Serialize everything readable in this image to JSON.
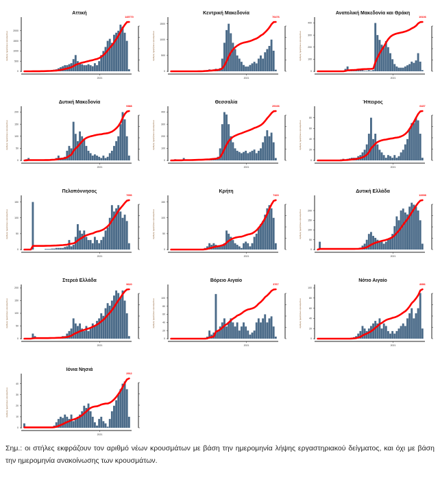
{
  "colors": {
    "bar": "#4a6a88",
    "line": "#ff0000",
    "axis": "#222222",
    "label": "#8a5a2a"
  },
  "axis_common": {
    "ylabel": "Αριθμός ημερήσιων κρουσμάτων",
    "xtick": "2021"
  },
  "note": "Σημ.: οι στήλες εκφράζουν τον αριθμό νέων κρουσμάτων με βάση την ημερομηνία λήψης εργαστηριακού δείγματος, και όχι με βάση την ημερομηνία ανακοίνωσης των κρουσμάτων.",
  "chart_data": [
    {
      "type": "bar+line",
      "title": "Αττική",
      "ylim": [
        0,
        2500
      ],
      "yticks": [
        0,
        500,
        1000,
        1500,
        2000
      ],
      "cumulative_end": "145770",
      "values": [
        5,
        5,
        5,
        5,
        5,
        10,
        10,
        15,
        20,
        20,
        30,
        40,
        50,
        60,
        80,
        100,
        150,
        200,
        250,
        300,
        300,
        350,
        400,
        600,
        800,
        500,
        400,
        350,
        300,
        300,
        350,
        300,
        250,
        400,
        300,
        500,
        800,
        1000,
        1200,
        1500,
        1600,
        1400,
        1800,
        1900,
        2000,
        2300,
        2200,
        1900,
        1500,
        100
      ]
    },
    {
      "type": "bar+line",
      "title": "Κεντρική Μακεδονία",
      "ylim": [
        0,
        1600
      ],
      "yticks": [
        0,
        500,
        1000,
        1500
      ],
      "cumulative_end": "76476",
      "values": [
        0,
        0,
        0,
        0,
        0,
        0,
        0,
        0,
        0,
        0,
        0,
        5,
        5,
        10,
        10,
        20,
        30,
        40,
        60,
        50,
        60,
        80,
        70,
        100,
        400,
        900,
        1300,
        1500,
        1200,
        900,
        700,
        500,
        400,
        300,
        200,
        150,
        150,
        200,
        250,
        300,
        250,
        400,
        500,
        400,
        600,
        700,
        800,
        1000,
        650,
        50
      ]
    },
    {
      "type": "bar+line",
      "title": "Ανατολική Μακεδονία και Θράκη",
      "ylim": [
        0,
        420
      ],
      "yticks": [
        0,
        100,
        200,
        300,
        400
      ],
      "cumulative_end": "19106",
      "values": [
        0,
        0,
        0,
        0,
        0,
        0,
        0,
        0,
        0,
        0,
        0,
        0,
        0,
        20,
        40,
        10,
        5,
        5,
        10,
        20,
        10,
        10,
        5,
        5,
        10,
        5,
        10,
        400,
        300,
        260,
        220,
        200,
        250,
        200,
        150,
        100,
        60,
        40,
        30,
        30,
        30,
        40,
        50,
        60,
        80,
        70,
        90,
        150,
        80,
        10
      ]
    },
    {
      "type": "bar+line",
      "title": "Δυτική Μακεδονία",
      "ylim": [
        0,
        210
      ],
      "yticks": [
        0,
        50,
        100,
        150,
        200
      ],
      "cumulative_end": "9388",
      "values": [
        0,
        5,
        10,
        0,
        0,
        0,
        0,
        0,
        0,
        0,
        2,
        2,
        3,
        5,
        5,
        10,
        20,
        10,
        10,
        15,
        40,
        60,
        50,
        160,
        110,
        80,
        120,
        100,
        90,
        60,
        40,
        30,
        20,
        25,
        20,
        15,
        10,
        20,
        10,
        15,
        30,
        40,
        60,
        80,
        100,
        150,
        200,
        170,
        100,
        20
      ]
    },
    {
      "type": "bar+line",
      "title": "Θεσσαλία",
      "ylim": [
        0,
        420
      ],
      "yticks": [
        0,
        100,
        200,
        300,
        400
      ],
      "cumulative_end": "29166",
      "values": [
        0,
        0,
        10,
        0,
        0,
        0,
        20,
        0,
        0,
        0,
        5,
        5,
        5,
        5,
        5,
        10,
        10,
        10,
        10,
        15,
        20,
        20,
        30,
        100,
        300,
        400,
        380,
        300,
        200,
        150,
        100,
        80,
        70,
        60,
        70,
        80,
        60,
        70,
        80,
        90,
        60,
        80,
        100,
        150,
        200,
        250,
        200,
        230,
        150,
        20
      ]
    },
    {
      "type": "bar+line",
      "title": "Ήπειρος",
      "ylim": [
        0,
        95
      ],
      "yticks": [
        0,
        20,
        40,
        60,
        80
      ],
      "cumulative_end": "6437",
      "values": [
        0,
        0,
        0,
        0,
        0,
        0,
        0,
        0,
        0,
        0,
        0,
        2,
        3,
        2,
        3,
        4,
        5,
        5,
        5,
        8,
        10,
        15,
        20,
        30,
        50,
        80,
        40,
        50,
        30,
        20,
        15,
        10,
        5,
        10,
        8,
        5,
        10,
        5,
        8,
        15,
        20,
        30,
        40,
        60,
        70,
        70,
        80,
        75,
        50,
        5
      ]
    },
    {
      "type": "bar+line",
      "title": "Πελοπόννησος",
      "ylim": [
        0,
        160
      ],
      "yticks": [
        0,
        50,
        100,
        150
      ],
      "cumulative_end": "7656",
      "values": [
        0,
        0,
        0,
        0,
        150,
        0,
        0,
        0,
        0,
        0,
        2,
        2,
        2,
        3,
        3,
        5,
        5,
        5,
        5,
        8,
        10,
        30,
        10,
        15,
        40,
        80,
        60,
        50,
        60,
        40,
        30,
        30,
        20,
        40,
        30,
        20,
        30,
        40,
        60,
        70,
        100,
        140,
        120,
        130,
        140,
        120,
        100,
        110,
        90,
        20
      ]
    },
    {
      "type": "bar+line",
      "title": "Κρήτη",
      "ylim": [
        0,
        160
      ],
      "yticks": [
        0,
        50,
        100,
        150
      ],
      "cumulative_end": "7423",
      "values": [
        0,
        0,
        0,
        0,
        0,
        0,
        0,
        0,
        0,
        0,
        0,
        0,
        0,
        0,
        0,
        2,
        5,
        10,
        20,
        15,
        20,
        15,
        10,
        10,
        15,
        20,
        60,
        50,
        40,
        30,
        20,
        15,
        10,
        5,
        20,
        25,
        20,
        10,
        20,
        40,
        50,
        70,
        80,
        90,
        110,
        130,
        140,
        130,
        100,
        20
      ]
    },
    {
      "type": "bar+line",
      "title": "Δυτική Ελλάδα",
      "ylim": [
        0,
        260
      ],
      "yticks": [
        0,
        50,
        100,
        150,
        200
      ],
      "cumulative_end": "13398",
      "values": [
        0,
        40,
        0,
        0,
        0,
        0,
        0,
        0,
        0,
        0,
        0,
        0,
        0,
        0,
        0,
        0,
        0,
        2,
        3,
        5,
        10,
        20,
        30,
        50,
        80,
        90,
        70,
        60,
        50,
        40,
        40,
        30,
        40,
        50,
        60,
        80,
        120,
        170,
        150,
        200,
        210,
        190,
        180,
        220,
        240,
        230,
        220,
        200,
        150,
        30
      ]
    },
    {
      "type": "bar+line",
      "title": "Στερεά Ελλάδα",
      "ylim": [
        0,
        200
      ],
      "yticks": [
        0,
        50,
        100,
        150,
        200
      ],
      "cumulative_end": "9620",
      "values": [
        0,
        0,
        0,
        0,
        20,
        10,
        0,
        0,
        0,
        0,
        0,
        2,
        2,
        3,
        3,
        5,
        5,
        5,
        10,
        10,
        20,
        30,
        40,
        80,
        60,
        50,
        60,
        40,
        30,
        50,
        30,
        40,
        60,
        50,
        70,
        80,
        100,
        90,
        120,
        140,
        130,
        150,
        170,
        190,
        180,
        160,
        190,
        150,
        100,
        10
      ]
    },
    {
      "type": "bar+line",
      "title": "Βόρειο Αιγαίο",
      "ylim": [
        0,
        125
      ],
      "yticks": [
        0,
        20,
        40,
        60,
        80,
        100
      ],
      "cumulative_end": "3767",
      "values": [
        0,
        0,
        0,
        0,
        0,
        0,
        0,
        0,
        0,
        0,
        0,
        0,
        0,
        0,
        0,
        0,
        2,
        5,
        20,
        10,
        15,
        110,
        20,
        30,
        40,
        50,
        30,
        40,
        50,
        40,
        30,
        40,
        20,
        30,
        40,
        30,
        20,
        10,
        15,
        20,
        40,
        50,
        40,
        50,
        60,
        40,
        50,
        55,
        30,
        5
      ]
    },
    {
      "type": "bar+line",
      "title": "Νότιο Αιγαίο",
      "ylim": [
        0,
        100
      ],
      "yticks": [
        0,
        20,
        40,
        60,
        80,
        100
      ],
      "cumulative_end": "8956",
      "values": [
        0,
        0,
        0,
        0,
        0,
        0,
        0,
        0,
        0,
        0,
        0,
        0,
        0,
        0,
        0,
        0,
        2,
        3,
        5,
        10,
        15,
        25,
        20,
        15,
        20,
        25,
        30,
        35,
        30,
        40,
        20,
        30,
        25,
        15,
        10,
        15,
        10,
        15,
        20,
        25,
        30,
        25,
        40,
        50,
        60,
        40,
        50,
        60,
        90,
        20
      ]
    },
    {
      "type": "bar+line",
      "title": "Ιόνια Νησιά",
      "ylim": [
        0,
        46
      ],
      "yticks": [
        0,
        10,
        20,
        30,
        40
      ],
      "cumulative_end": "2912",
      "values": [
        4,
        0,
        0,
        0,
        0,
        0,
        0,
        0,
        0,
        0,
        0,
        0,
        0,
        0,
        2,
        5,
        8,
        10,
        9,
        12,
        10,
        8,
        12,
        6,
        8,
        10,
        12,
        15,
        20,
        18,
        22,
        15,
        10,
        5,
        2,
        8,
        10,
        6,
        4,
        1,
        8,
        15,
        20,
        25,
        30,
        35,
        40,
        42,
        35,
        10
      ]
    }
  ]
}
